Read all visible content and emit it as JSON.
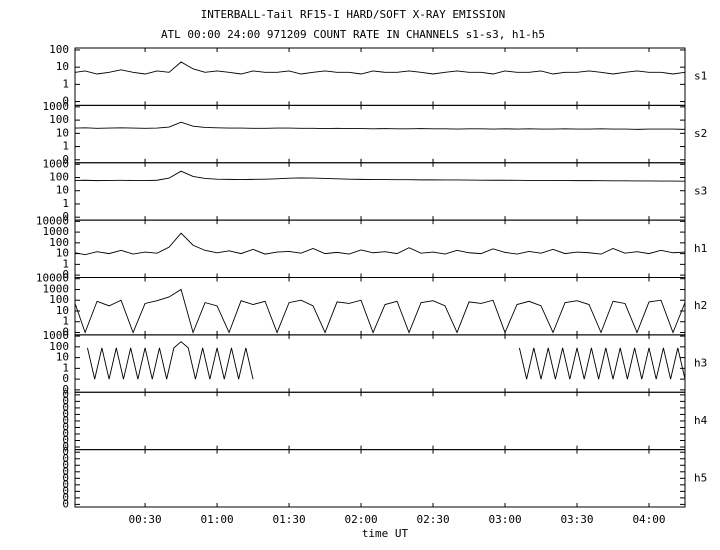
{
  "chart_data": [
    {
      "type": "line",
      "title": "INTERBALL-Tail RF15-I HARD/SOFT X-RAY EMISSION",
      "subtitle": "ATL 00:00 24:00 971209  COUNT RATE IN CHANNELS s1-s3, h1-h5",
      "name": "s1",
      "color": "#000000",
      "log": true,
      "xlim": [
        0.8,
        255
      ],
      "ylim": [
        0.06,
        130
      ],
      "yticks": [
        {
          "value": 0.1,
          "label": "0"
        },
        1,
        10,
        100
      ],
      "x": [
        1,
        5,
        10,
        15,
        20,
        25,
        30,
        35,
        40,
        45,
        50,
        55,
        60,
        65,
        70,
        75,
        80,
        85,
        90,
        95,
        100,
        105,
        110,
        115,
        120,
        125,
        130,
        135,
        140,
        145,
        150,
        155,
        160,
        165,
        170,
        175,
        180,
        185,
        190,
        195,
        200,
        205,
        210,
        215,
        220,
        225,
        230,
        235,
        240,
        245,
        250,
        255
      ],
      "values": [
        5,
        6,
        4,
        5,
        7,
        5,
        4,
        6,
        5,
        20,
        8,
        5,
        6,
        5,
        4,
        6,
        5,
        5,
        6,
        4,
        5,
        6,
        5,
        5,
        4,
        6,
        5,
        5,
        6,
        5,
        4,
        5,
        6,
        5,
        5,
        4,
        6,
        5,
        5,
        6,
        4,
        5,
        5,
        6,
        5,
        4,
        5,
        6,
        5,
        5,
        4,
        5
      ]
    },
    {
      "type": "line",
      "name": "s2",
      "color": "#000000",
      "log": true,
      "xlim": [
        0.8,
        255
      ],
      "ylim": [
        0.06,
        1300
      ],
      "yticks": [
        {
          "value": 0.1,
          "label": "0"
        },
        1,
        10,
        100,
        1000
      ],
      "x": [
        1,
        5,
        10,
        15,
        20,
        25,
        30,
        35,
        40,
        45,
        50,
        55,
        60,
        65,
        70,
        75,
        80,
        85,
        90,
        95,
        100,
        105,
        110,
        115,
        120,
        125,
        130,
        135,
        140,
        145,
        150,
        155,
        160,
        165,
        170,
        175,
        180,
        185,
        190,
        195,
        200,
        205,
        210,
        215,
        220,
        225,
        230,
        235,
        240,
        245,
        250,
        255
      ],
      "values": [
        25,
        26,
        24,
        25,
        26,
        25,
        24,
        25,
        30,
        70,
        35,
        28,
        26,
        25,
        25,
        24,
        24,
        25,
        25,
        24,
        24,
        23,
        24,
        23,
        23,
        22,
        23,
        22,
        22,
        23,
        22,
        22,
        21,
        22,
        22,
        21,
        22,
        21,
        22,
        21,
        21,
        22,
        21,
        21,
        22,
        21,
        21,
        20,
        21,
        21,
        21,
        20
      ]
    },
    {
      "type": "line",
      "name": "s3",
      "color": "#000000",
      "log": true,
      "xlim": [
        0.8,
        255
      ],
      "ylim": [
        0.06,
        1300
      ],
      "yticks": [
        {
          "value": 0.1,
          "label": "0"
        },
        1,
        10,
        100,
        1000
      ],
      "x": [
        1,
        5,
        10,
        15,
        20,
        25,
        30,
        35,
        40,
        45,
        50,
        55,
        60,
        65,
        70,
        75,
        80,
        85,
        90,
        95,
        100,
        105,
        110,
        115,
        120,
        125,
        130,
        135,
        140,
        145,
        150,
        155,
        160,
        165,
        170,
        175,
        180,
        185,
        190,
        195,
        200,
        205,
        210,
        215,
        220,
        225,
        230,
        235,
        240,
        245,
        250,
        255
      ],
      "values": [
        60,
        62,
        58,
        60,
        61,
        60,
        59,
        62,
        90,
        300,
        120,
        85,
        75,
        72,
        70,
        72,
        75,
        80,
        88,
        92,
        90,
        85,
        80,
        75,
        72,
        70,
        70,
        68,
        68,
        66,
        66,
        65,
        65,
        64,
        63,
        62,
        62,
        61,
        60,
        60,
        60,
        59,
        58,
        58,
        57,
        56,
        56,
        55,
        55,
        54,
        54,
        53
      ]
    },
    {
      "type": "line",
      "name": "h1",
      "color": "#000000",
      "log": true,
      "xlim": [
        0.8,
        255
      ],
      "ylim": [
        0.06,
        13000
      ],
      "yticks": [
        {
          "value": 0.1,
          "label": "0"
        },
        1,
        10,
        100,
        1000,
        10000
      ],
      "x": [
        1,
        5,
        10,
        15,
        20,
        25,
        30,
        35,
        40,
        45,
        50,
        55,
        60,
        65,
        70,
        75,
        80,
        85,
        90,
        95,
        100,
        105,
        110,
        115,
        120,
        125,
        130,
        135,
        140,
        145,
        150,
        155,
        160,
        165,
        170,
        175,
        180,
        185,
        190,
        195,
        200,
        205,
        210,
        215,
        220,
        225,
        230,
        235,
        240,
        245,
        250,
        255
      ],
      "values": [
        12,
        8,
        15,
        10,
        20,
        9,
        14,
        11,
        40,
        800,
        60,
        20,
        12,
        18,
        10,
        25,
        9,
        14,
        16,
        11,
        30,
        10,
        13,
        9,
        22,
        12,
        15,
        10,
        35,
        11,
        14,
        9,
        20,
        12,
        10,
        28,
        13,
        9,
        16,
        11,
        25,
        10,
        14,
        12,
        9,
        30,
        11,
        15,
        10,
        20,
        12,
        14
      ]
    },
    {
      "type": "line",
      "name": "h2",
      "color": "#000000",
      "log": true,
      "xlim": [
        0.8,
        255
      ],
      "ylim": [
        0.06,
        13000
      ],
      "yticks": [
        {
          "value": 0.1,
          "label": "0"
        },
        1,
        10,
        100,
        1000,
        10000
      ],
      "x": [
        1,
        5,
        10,
        15,
        20,
        25,
        30,
        35,
        40,
        45,
        50,
        55,
        60,
        65,
        70,
        75,
        80,
        85,
        90,
        95,
        100,
        105,
        110,
        115,
        120,
        125,
        130,
        135,
        140,
        145,
        150,
        155,
        160,
        165,
        170,
        175,
        180,
        185,
        190,
        195,
        200,
        205,
        210,
        215,
        220,
        225,
        230,
        235,
        240,
        245,
        250,
        255
      ],
      "values": [
        40,
        0.1,
        80,
        30,
        100,
        0.1,
        50,
        90,
        200,
        1000,
        0.1,
        60,
        30,
        0.1,
        90,
        40,
        80,
        0.1,
        60,
        100,
        30,
        0.1,
        70,
        50,
        100,
        0.1,
        40,
        80,
        0.1,
        60,
        90,
        30,
        0.1,
        70,
        50,
        100,
        0.1,
        40,
        80,
        30,
        0.1,
        60,
        90,
        40,
        0.1,
        80,
        50,
        0.1,
        70,
        100,
        0.1,
        60
      ]
    },
    {
      "type": "line",
      "name": "h3",
      "color": "#000000",
      "log": true,
      "xlim": [
        0.8,
        255
      ],
      "ylim": [
        0.006,
        1300
      ],
      "yticks": [
        {
          "value": 0.01,
          "label": "0"
        },
        {
          "value": 0.1,
          "label": "0"
        },
        1,
        10,
        100,
        1000
      ],
      "x": [
        6,
        9,
        12,
        15,
        18,
        21,
        24,
        27,
        30,
        33,
        36,
        39,
        42,
        45,
        48,
        51,
        54,
        57,
        60,
        63,
        66,
        69,
        72,
        75,
        130,
        186,
        189,
        192,
        195,
        198,
        201,
        204,
        207,
        210,
        213,
        216,
        219,
        222,
        225,
        228,
        231,
        234,
        237,
        240,
        243,
        246,
        249,
        252,
        255
      ],
      "values": [
        80,
        0.1,
        80,
        0.1,
        80,
        0.1,
        80,
        0.1,
        80,
        0.1,
        80,
        0.1,
        80,
        300,
        80,
        0.1,
        80,
        0.1,
        80,
        0.1,
        80,
        0.1,
        80,
        0.1,
        null,
        80,
        0.1,
        80,
        0.1,
        80,
        0.1,
        80,
        0.1,
        80,
        0.1,
        80,
        0.1,
        80,
        0.1,
        80,
        0.1,
        80,
        0.1,
        80,
        0.1,
        80,
        0.1,
        80,
        0.1
      ]
    },
    {
      "type": "line",
      "name": "h4",
      "log": false,
      "xlim": [
        0.8,
        255
      ],
      "ylim": [
        -0.4,
        8.4
      ],
      "yticks": [
        {
          "value": 0,
          "label": "0"
        },
        {
          "value": 1,
          "label": "0"
        },
        {
          "value": 2,
          "label": "0"
        },
        {
          "value": 3,
          "label": "0"
        },
        {
          "value": 4,
          "label": "0"
        },
        {
          "value": 5,
          "label": "0"
        },
        {
          "value": 6,
          "label": "0"
        },
        {
          "value": 7,
          "label": "0"
        },
        {
          "value": 8,
          "label": "0"
        }
      ]
    },
    {
      "type": "line",
      "name": "h5",
      "log": false,
      "xlim": [
        0.8,
        255
      ],
      "ylim": [
        -0.4,
        8.4
      ],
      "yticks": [
        {
          "value": 0,
          "label": "0"
        },
        {
          "value": 1,
          "label": "0"
        },
        {
          "value": 2,
          "label": "0"
        },
        {
          "value": 3,
          "label": "0"
        },
        {
          "value": 4,
          "label": "0"
        },
        {
          "value": 5,
          "label": "0"
        },
        {
          "value": 6,
          "label": "0"
        },
        {
          "value": 7,
          "label": "0"
        },
        {
          "value": 8,
          "label": "0"
        }
      ],
      "xlabel": "time UT",
      "xticks": [
        {
          "value": 30,
          "label": "00:30"
        },
        {
          "value": 60,
          "label": "01:00"
        },
        {
          "value": 90,
          "label": "01:30"
        },
        {
          "value": 120,
          "label": "02:00"
        },
        {
          "value": 150,
          "label": "02:30"
        },
        {
          "value": 180,
          "label": "03:00"
        },
        {
          "value": 210,
          "label": "03:30"
        },
        {
          "value": 240,
          "label": "04:00"
        }
      ]
    }
  ]
}
